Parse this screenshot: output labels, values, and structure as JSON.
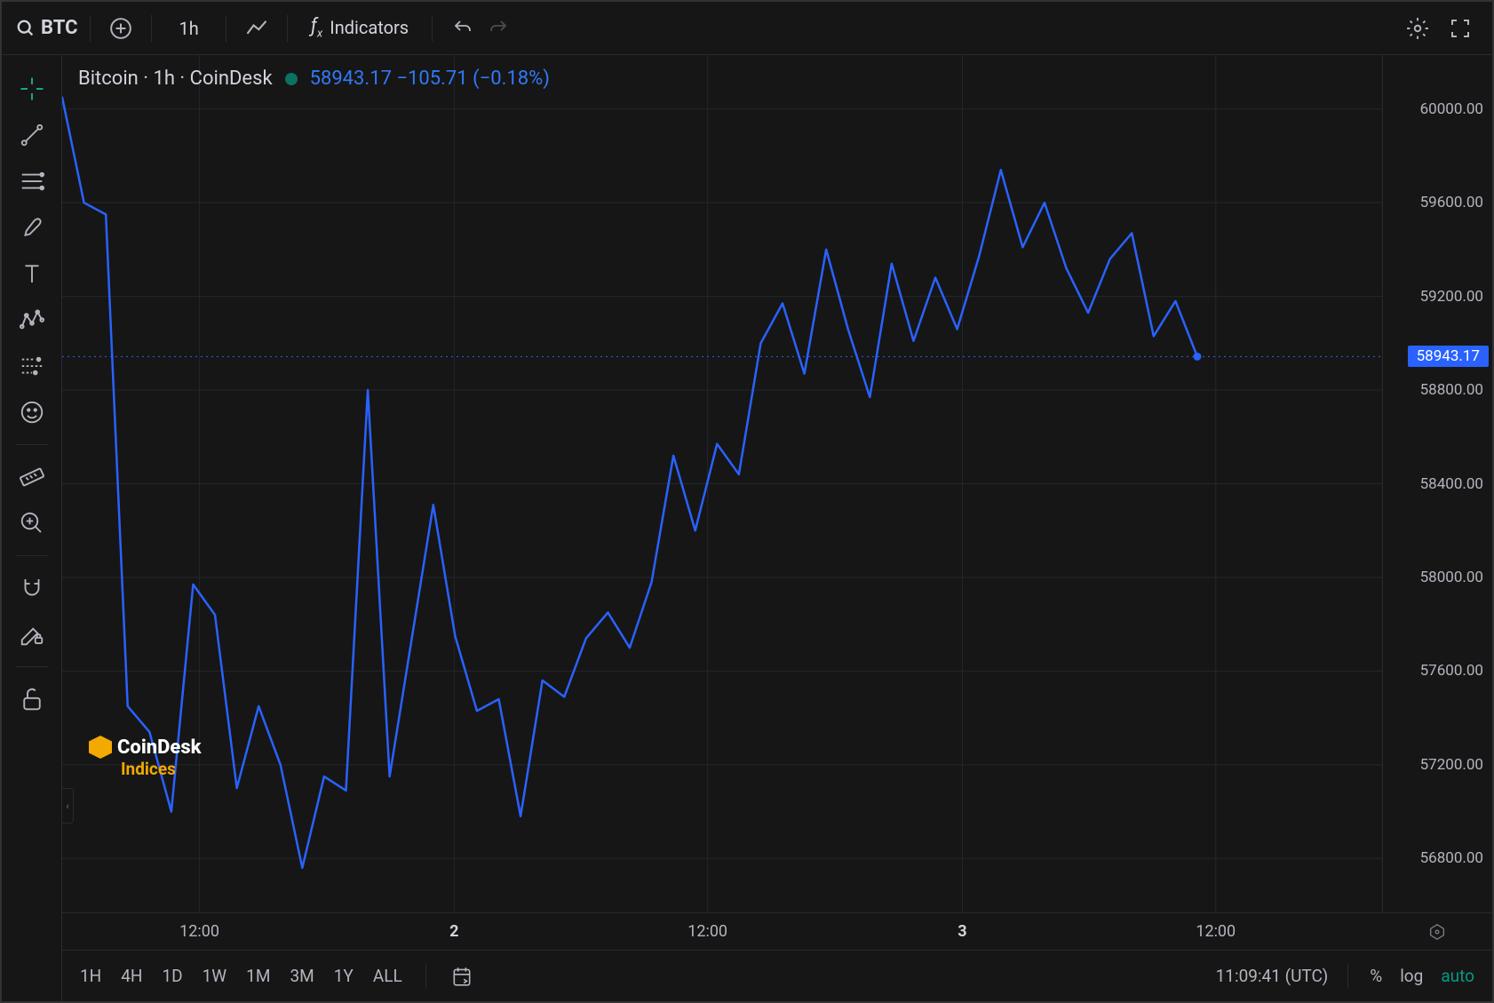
{
  "toolbar": {
    "symbol": "BTC",
    "timeframe": "1h",
    "indicators_label": "Indicators"
  },
  "chart": {
    "title": "Bitcoin · 1h · CoinDesk",
    "status_color": "#089981",
    "price": "58943.17",
    "change": "−105.71",
    "change_pct": "(−0.18%)",
    "line_color": "#2962ff",
    "line_width": 2.5,
    "bg_color": "#161616",
    "grid_color": "#24262f",
    "y_axis": {
      "min": 56600,
      "max": 60200,
      "ticks": [
        56800,
        57200,
        57600,
        58000,
        58400,
        58800,
        59200,
        59600,
        60000
      ],
      "tick_labels": [
        "56800.00",
        "57200.00",
        "57600.00",
        "58000.00",
        "58400.00",
        "58800.00",
        "59200.00",
        "59600.00",
        "60000.00"
      ]
    },
    "price_line": {
      "value": 58943.17,
      "color": "#2962ff",
      "label": "58943.17"
    },
    "x_axis": {
      "ticks": [
        {
          "pos": 0.104,
          "label": "12:00",
          "bold": false
        },
        {
          "pos": 0.297,
          "label": "2",
          "bold": true
        },
        {
          "pos": 0.489,
          "label": "12:00",
          "bold": false
        },
        {
          "pos": 0.682,
          "label": "3",
          "bold": true
        },
        {
          "pos": 0.874,
          "label": "12:00",
          "bold": false
        }
      ],
      "grid_positions": [
        0.104,
        0.297,
        0.489,
        0.682,
        0.874
      ]
    },
    "series": [
      [
        0.0,
        60050
      ],
      [
        0.016,
        59600
      ],
      [
        0.032,
        59550
      ],
      [
        0.048,
        57450
      ],
      [
        0.064,
        57340
      ],
      [
        0.08,
        57000
      ],
      [
        0.096,
        57970
      ],
      [
        0.112,
        57840
      ],
      [
        0.128,
        57100
      ],
      [
        0.144,
        57450
      ],
      [
        0.16,
        57200
      ],
      [
        0.176,
        56760
      ],
      [
        0.192,
        57150
      ],
      [
        0.208,
        57090
      ],
      [
        0.224,
        58800
      ],
      [
        0.24,
        57150
      ],
      [
        0.256,
        57730
      ],
      [
        0.272,
        58310
      ],
      [
        0.288,
        57750
      ],
      [
        0.304,
        57430
      ],
      [
        0.32,
        57480
      ],
      [
        0.336,
        56980
      ],
      [
        0.352,
        57560
      ],
      [
        0.368,
        57490
      ],
      [
        0.384,
        57740
      ],
      [
        0.4,
        57850
      ],
      [
        0.416,
        57700
      ],
      [
        0.432,
        57980
      ],
      [
        0.448,
        58520
      ],
      [
        0.464,
        58200
      ],
      [
        0.48,
        58570
      ],
      [
        0.496,
        58440
      ],
      [
        0.512,
        59000
      ],
      [
        0.528,
        59170
      ],
      [
        0.544,
        58870
      ],
      [
        0.56,
        59400
      ],
      [
        0.576,
        59060
      ],
      [
        0.592,
        58770
      ],
      [
        0.608,
        59340
      ],
      [
        0.624,
        59010
      ],
      [
        0.64,
        59280
      ],
      [
        0.656,
        59060
      ],
      [
        0.672,
        59370
      ],
      [
        0.688,
        59740
      ],
      [
        0.704,
        59410
      ],
      [
        0.72,
        59600
      ],
      [
        0.736,
        59320
      ],
      [
        0.752,
        59130
      ],
      [
        0.768,
        59360
      ],
      [
        0.784,
        59470
      ],
      [
        0.8,
        59030
      ],
      [
        0.816,
        59180
      ],
      [
        0.832,
        58943
      ]
    ],
    "end_dot": [
      0.832,
      58943
    ]
  },
  "watermark": {
    "brand": "CoinDesk",
    "sub": "Indices",
    "accent": "#f2a900"
  },
  "bottom": {
    "timeframes": [
      "1H",
      "4H",
      "1D",
      "1W",
      "1M",
      "3M",
      "1Y",
      "ALL"
    ],
    "clock": "11:09:41 (UTC)",
    "pct_label": "%",
    "log_label": "log",
    "auto_label": "auto"
  }
}
